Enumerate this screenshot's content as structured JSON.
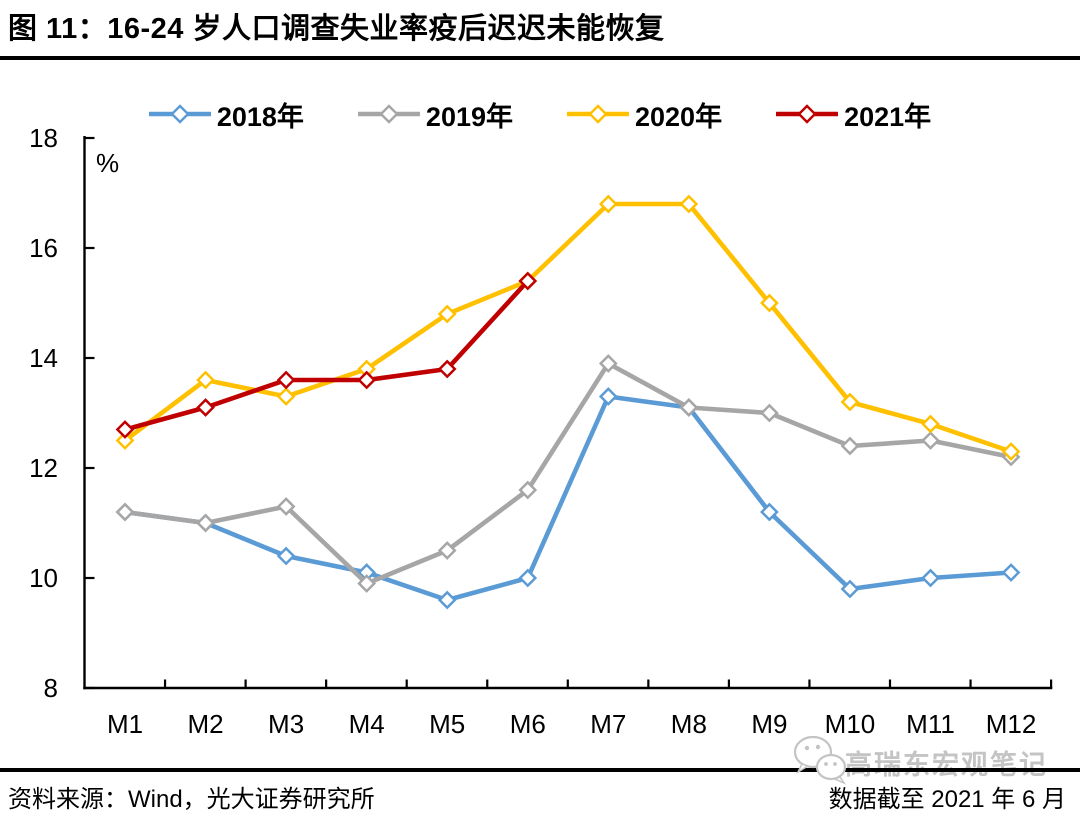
{
  "header": {
    "title": "图 11：16-24 岁人口调查失业率疫后迟迟未能恢复"
  },
  "chart_data": {
    "type": "line",
    "title": "图 11：16-24 岁人口调查失业率疫后迟迟未能恢复",
    "unit_label": "%",
    "categories": [
      "M1",
      "M2",
      "M3",
      "M4",
      "M5",
      "M6",
      "M7",
      "M8",
      "M9",
      "M10",
      "M11",
      "M12"
    ],
    "ylim": [
      8,
      18
    ],
    "yticks": [
      8,
      10,
      12,
      14,
      16,
      18
    ],
    "grid": false,
    "legend_position": "top",
    "marker": "diamond",
    "series": [
      {
        "name": "2018年",
        "color": "#5B9BD5",
        "values": [
          11.2,
          11.0,
          10.4,
          10.1,
          9.6,
          10.0,
          13.3,
          13.1,
          11.2,
          9.8,
          10.0,
          10.1
        ]
      },
      {
        "name": "2019年",
        "color": "#A6A6A6",
        "values": [
          11.2,
          11.0,
          11.3,
          9.9,
          10.5,
          11.6,
          13.9,
          13.1,
          13.0,
          12.4,
          12.5,
          12.2
        ]
      },
      {
        "name": "2020年",
        "color": "#FFC000",
        "values": [
          12.5,
          13.6,
          13.3,
          13.8,
          14.8,
          15.4,
          16.8,
          16.8,
          15.0,
          13.2,
          12.8,
          12.3
        ]
      },
      {
        "name": "2021年",
        "color": "#C00000",
        "values": [
          12.7,
          13.1,
          13.6,
          13.6,
          13.8,
          15.4
        ]
      }
    ]
  },
  "footer": {
    "source": "资料来源：Wind，光大证券研究所",
    "note": "数据截至 2021 年 6 月"
  },
  "watermark": {
    "text": "高瑞东宏观笔记",
    "icon": "wechat-icon",
    "color": "#c4c4c4"
  }
}
